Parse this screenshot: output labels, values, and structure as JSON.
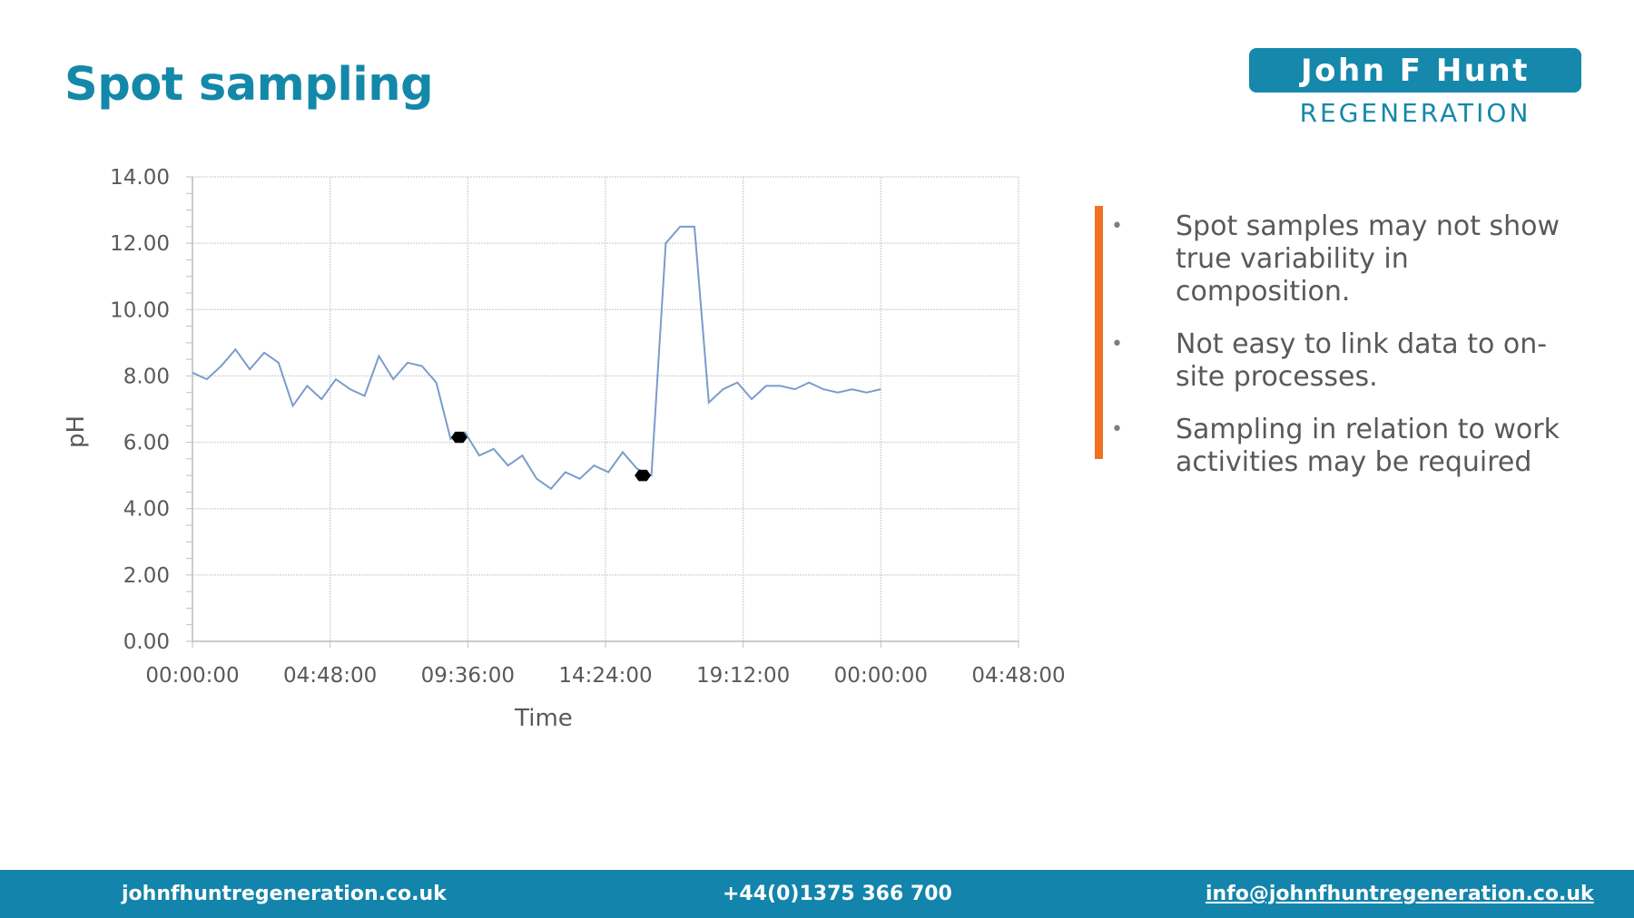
{
  "slide": {
    "title": "Spot sampling"
  },
  "logo": {
    "top_text": "John F Hunt",
    "bottom_text": "REGENERATION",
    "color": "#1588ab"
  },
  "chart_data": {
    "type": "line",
    "title": "",
    "xlabel": "Time",
    "ylabel": "pH",
    "ylim": [
      0,
      14
    ],
    "xlim_hours": [
      0,
      28.8
    ],
    "y_ticks": [
      "0.00",
      "2.00",
      "4.00",
      "6.00",
      "8.00",
      "10.00",
      "12.00",
      "14.00"
    ],
    "x_ticks": [
      "00:00:00",
      "04:48:00",
      "09:36:00",
      "14:24:00",
      "19:12:00",
      "00:00:00",
      "04:48:00"
    ],
    "grid": true,
    "line_color": "#7a9ccb",
    "series": [
      {
        "x": [
          0,
          0.5,
          1,
          1.5,
          2,
          2.5,
          3,
          3.5,
          4,
          4.5,
          5,
          5.5,
          6,
          6.5,
          7,
          7.5,
          8,
          8.5,
          9,
          9.5,
          10,
          10.5,
          11,
          11.5,
          12,
          12.5,
          13,
          13.5,
          14,
          14.5,
          15,
          15.5,
          16,
          16.5,
          17,
          17.5,
          18,
          18.5,
          19,
          19.5,
          20,
          20.5,
          21,
          21.5,
          22,
          22.5,
          23,
          23.5,
          24
        ],
        "y": [
          8.1,
          7.9,
          8.3,
          8.8,
          8.2,
          8.7,
          8.4,
          7.1,
          7.7,
          7.3,
          7.9,
          7.6,
          7.4,
          8.6,
          7.9,
          8.4,
          8.3,
          7.8,
          6.1,
          6.3,
          5.6,
          5.8,
          5.3,
          5.6,
          4.9,
          4.6,
          5.1,
          4.9,
          5.3,
          5.1,
          5.7,
          5.2,
          5.0,
          12.0,
          12.5,
          12.5,
          7.2,
          7.6,
          7.8,
          7.3,
          7.7,
          7.7,
          7.6,
          7.8,
          7.6,
          7.5,
          7.6,
          7.5,
          7.6
        ]
      }
    ],
    "sample_markers": [
      {
        "x": 9.3,
        "y": 6.15
      },
      {
        "x": 15.7,
        "y": 5.0
      }
    ],
    "marker_color": "#000000"
  },
  "bullets": [
    {
      "symbol": "•",
      "text": "Spot samples may not show true variability in composition."
    },
    {
      "symbol": "•",
      "text": "Not easy to link data to on-site processes."
    },
    {
      "symbol": "•",
      "text": "Sampling in relation to work activities may be required"
    }
  ],
  "accent_color": "#f07123",
  "footer": {
    "website": "johnfhuntregeneration.co.uk",
    "phone": "+44(0)1375 366 700",
    "email": "info@johnfhuntregeneration.co.uk",
    "background": "#1384ab"
  }
}
